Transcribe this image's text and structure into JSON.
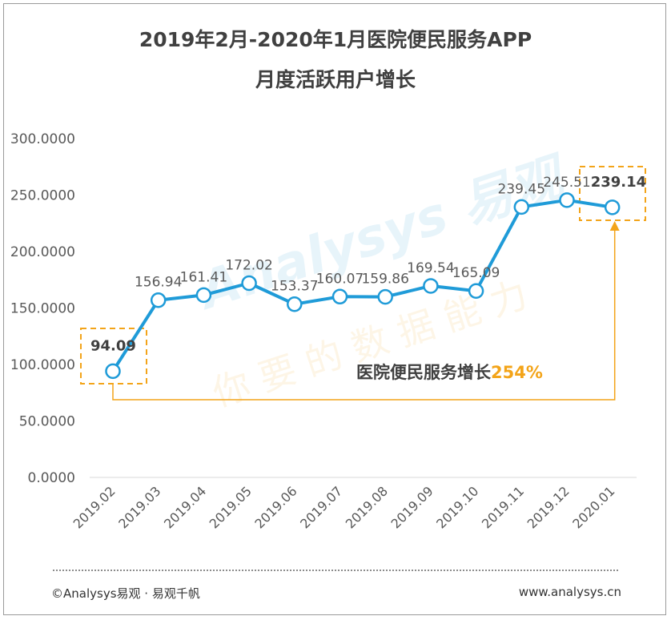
{
  "title_line1": "2019年2月-2020年1月医院便民服务APP",
  "title_line2": "月度活跃用户增长",
  "chart_data": {
    "type": "line",
    "categories": [
      "2019.02",
      "2019.03",
      "2019.04",
      "2019.05",
      "2019.06",
      "2019.07",
      "2019.08",
      "2019.09",
      "2019.10",
      "2019.11",
      "2019.12",
      "2020.01"
    ],
    "values": [
      94.09,
      156.94,
      161.41,
      172.02,
      153.37,
      160.07,
      159.86,
      169.54,
      165.09,
      239.45,
      245.51,
      239.14
    ],
    "data_labels": [
      "94.09",
      "156.94",
      "161.41",
      "172.02",
      "153.37",
      "160.07",
      "159.86",
      "169.54",
      "165.09",
      "239.45",
      "245.51",
      "239.14"
    ],
    "ylim": [
      0,
      300
    ],
    "yticks": [
      0,
      50,
      100,
      150,
      200,
      250,
      300
    ],
    "ytick_labels": [
      "0.0000",
      "50.0000",
      "100.0000",
      "150.0000",
      "200.0000",
      "250.0000",
      "300.0000"
    ],
    "highlighted_points": [
      0,
      11
    ],
    "annotation_text": "医院便民服务增长",
    "annotation_value": "254%",
    "line_color": "#1f9bd8",
    "highlight_color": "#f3a419",
    "grid": false
  },
  "watermark": {
    "line1": "Analysys 易观",
    "line2": "你 要 的 数 据 能 力"
  },
  "footer": {
    "left": "©Analysys易观 · 易观千帆",
    "right": "www.analysys.cn"
  }
}
